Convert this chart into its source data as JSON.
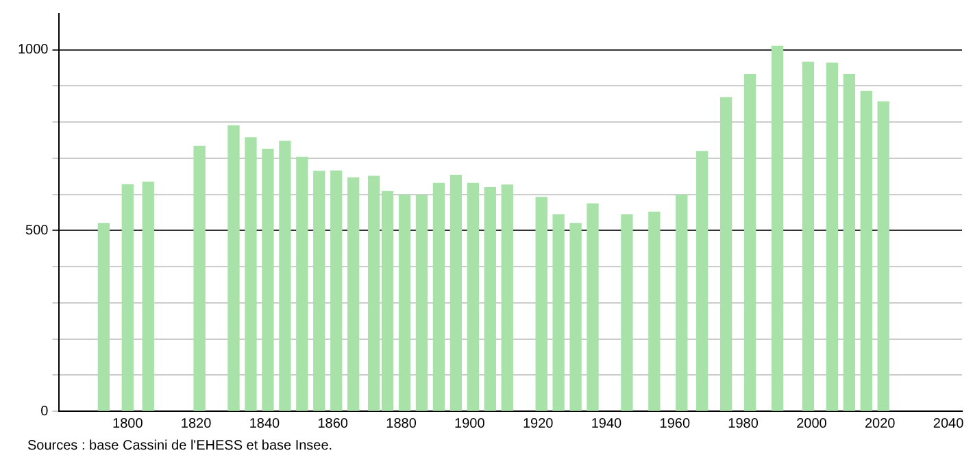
{
  "chart_data": {
    "type": "bar",
    "x": [
      1793,
      1800,
      1806,
      1821,
      1831,
      1836,
      1841,
      1846,
      1851,
      1856,
      1861,
      1866,
      1872,
      1876,
      1881,
      1886,
      1891,
      1896,
      1901,
      1906,
      1911,
      1921,
      1926,
      1931,
      1936,
      1946,
      1954,
      1962,
      1968,
      1975,
      1982,
      1990,
      1999,
      2006,
      2011,
      2016,
      2021
    ],
    "values": [
      520,
      627,
      634,
      733,
      790,
      757,
      725,
      747,
      703,
      664,
      665,
      646,
      650,
      608,
      598,
      598,
      631,
      653,
      631,
      619,
      626,
      592,
      544,
      520,
      574,
      544,
      551,
      598,
      719,
      868,
      932,
      1010,
      966,
      963,
      932,
      885,
      856
    ],
    "color": "#a8e2a8",
    "xlim": [
      1780,
      2044
    ],
    "xticks": [
      1800,
      1820,
      1840,
      1860,
      1880,
      1900,
      1920,
      1940,
      1960,
      1980,
      2000,
      2020,
      2040
    ],
    "ylim": [
      0,
      1100
    ],
    "yticks": [
      0,
      {
        "value": 100,
        "label": null
      },
      {
        "value": 200,
        "label": null
      },
      {
        "value": 300,
        "label": null
      },
      {
        "value": 400,
        "label": null
      },
      500,
      {
        "value": 600,
        "label": null
      },
      {
        "value": 700,
        "label": null
      },
      {
        "value": 800,
        "label": null
      },
      {
        "value": 900,
        "label": null
      },
      1000
    ],
    "grid": "y",
    "annotations": [
      "Sources : base Cassini de l'EHESS et base Insee."
    ]
  }
}
